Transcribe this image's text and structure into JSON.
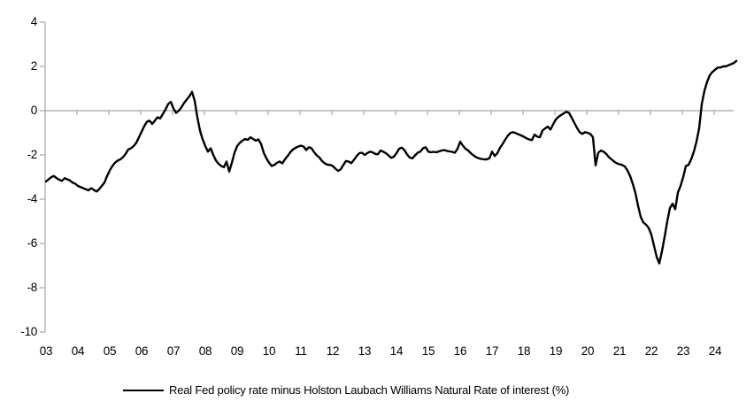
{
  "chart_data": {
    "type": "line",
    "title": "",
    "xlabel": "",
    "ylabel": "",
    "grid": "zero-line-only",
    "line_color": "#000000",
    "axis_color": "#b3b3b3",
    "x_axis": {
      "min": 2003,
      "max": 2024.75,
      "tick_years": [
        2003,
        2004,
        2005,
        2006,
        2007,
        2008,
        2009,
        2010,
        2011,
        2012,
        2013,
        2014,
        2015,
        2016,
        2017,
        2018,
        2019,
        2020,
        2021,
        2022,
        2023,
        2024
      ],
      "tick_labels": [
        "03",
        "04",
        "05",
        "06",
        "07",
        "08",
        "09",
        "10",
        "11",
        "12",
        "13",
        "14",
        "15",
        "16",
        "17",
        "18",
        "19",
        "20",
        "21",
        "22",
        "23",
        "24"
      ]
    },
    "y_axis": {
      "min": -10,
      "max": 4,
      "tick_values": [
        4,
        2,
        0,
        -2,
        -4,
        -6,
        -8,
        -10
      ],
      "tick_labels": [
        "4",
        "2",
        "0",
        "-2",
        "-4",
        "-6",
        "-8",
        "-10"
      ]
    },
    "legend": {
      "position": "bottom-center",
      "entries": [
        {
          "label": "Real Fed policy rate minus Holston Laubach Williams Natural Rate of interest (%)",
          "color": "#000000"
        }
      ]
    },
    "series": [
      {
        "name": "Real Fed policy rate minus Holston Laubach Williams Natural Rate of interest (%)",
        "start": "2003-01",
        "frequency": "monthly",
        "values": [
          -3.2,
          -3.1,
          -3.0,
          -2.95,
          -3.05,
          -3.12,
          -3.17,
          -3.05,
          -3.1,
          -3.15,
          -3.25,
          -3.3,
          -3.4,
          -3.45,
          -3.5,
          -3.55,
          -3.6,
          -3.5,
          -3.58,
          -3.65,
          -3.55,
          -3.4,
          -3.25,
          -2.95,
          -2.7,
          -2.5,
          -2.35,
          -2.25,
          -2.2,
          -2.1,
          -1.95,
          -1.75,
          -1.7,
          -1.6,
          -1.45,
          -1.2,
          -0.95,
          -0.7,
          -0.5,
          -0.45,
          -0.6,
          -0.45,
          -0.3,
          -0.35,
          -0.15,
          0.05,
          0.3,
          0.4,
          0.1,
          -0.1,
          0.0,
          0.15,
          0.35,
          0.5,
          0.65,
          0.85,
          0.45,
          -0.3,
          -0.9,
          -1.3,
          -1.6,
          -1.85,
          -1.7,
          -2.0,
          -2.25,
          -2.4,
          -2.5,
          -2.55,
          -2.3,
          -2.75,
          -2.35,
          -1.9,
          -1.6,
          -1.45,
          -1.35,
          -1.28,
          -1.32,
          -1.2,
          -1.28,
          -1.35,
          -1.3,
          -1.5,
          -1.9,
          -2.15,
          -2.35,
          -2.5,
          -2.45,
          -2.35,
          -2.3,
          -2.38,
          -2.2,
          -2.05,
          -1.88,
          -1.75,
          -1.68,
          -1.62,
          -1.58,
          -1.62,
          -1.78,
          -1.65,
          -1.7,
          -1.88,
          -2.02,
          -2.12,
          -2.28,
          -2.38,
          -2.44,
          -2.45,
          -2.5,
          -2.62,
          -2.72,
          -2.65,
          -2.45,
          -2.27,
          -2.3,
          -2.37,
          -2.22,
          -2.05,
          -1.92,
          -1.9,
          -2.0,
          -1.92,
          -1.85,
          -1.88,
          -1.95,
          -1.97,
          -1.8,
          -1.85,
          -1.92,
          -2.02,
          -2.13,
          -2.08,
          -1.92,
          -1.72,
          -1.67,
          -1.78,
          -1.98,
          -2.12,
          -2.15,
          -2.02,
          -1.9,
          -1.85,
          -1.7,
          -1.65,
          -1.85,
          -1.88,
          -1.86,
          -1.88,
          -1.84,
          -1.8,
          -1.78,
          -1.82,
          -1.84,
          -1.86,
          -1.9,
          -1.72,
          -1.4,
          -1.58,
          -1.72,
          -1.8,
          -1.92,
          -2.02,
          -2.1,
          -2.15,
          -2.18,
          -2.2,
          -2.2,
          -2.15,
          -1.85,
          -2.05,
          -1.92,
          -1.68,
          -1.5,
          -1.3,
          -1.12,
          -1.0,
          -0.97,
          -1.02,
          -1.07,
          -1.12,
          -1.18,
          -1.25,
          -1.3,
          -1.33,
          -1.08,
          -1.17,
          -1.2,
          -0.9,
          -0.8,
          -0.72,
          -0.85,
          -0.62,
          -0.4,
          -0.28,
          -0.2,
          -0.12,
          -0.05,
          -0.1,
          -0.32,
          -0.55,
          -0.78,
          -0.97,
          -1.05,
          -0.97,
          -1.0,
          -1.05,
          -1.2,
          -2.47,
          -1.9,
          -1.8,
          -1.85,
          -1.95,
          -2.1,
          -2.2,
          -2.3,
          -2.38,
          -2.42,
          -2.45,
          -2.52,
          -2.7,
          -2.95,
          -3.3,
          -3.72,
          -4.3,
          -4.8,
          -5.05,
          -5.15,
          -5.3,
          -5.6,
          -6.1,
          -6.6,
          -6.9,
          -6.35,
          -5.7,
          -5.0,
          -4.4,
          -4.2,
          -4.45,
          -3.7,
          -3.4,
          -3.0,
          -2.5,
          -2.45,
          -2.2,
          -1.85,
          -1.4,
          -0.8,
          0.3,
          0.9,
          1.3,
          1.6,
          1.75,
          1.85,
          1.95,
          1.95,
          2.0,
          2.0,
          2.05,
          2.1,
          2.15,
          2.25
        ]
      }
    ]
  }
}
